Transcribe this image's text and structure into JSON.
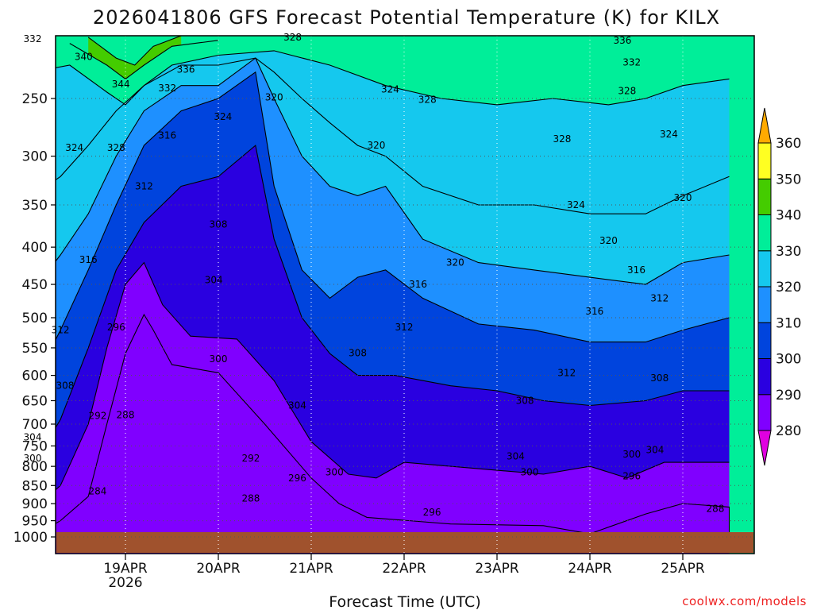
{
  "chart_data": {
    "type": "heatmap",
    "title": "2026041806 GFS Forecast Potential Temperature (K) for KILX",
    "xlabel": "Forecast Time (UTC)",
    "ylabel": "",
    "credit": "coolwx.com/models",
    "x_ticks": [
      {
        "label": "19APR",
        "sublabel": "2026",
        "t": 1
      },
      {
        "label": "20APR",
        "t": 2
      },
      {
        "label": "21APR",
        "t": 3
      },
      {
        "label": "22APR",
        "t": 4
      },
      {
        "label": "23APR",
        "t": 5
      },
      {
        "label": "24APR",
        "t": 6
      },
      {
        "label": "25APR",
        "t": 7
      }
    ],
    "x_range": [
      "2026-04-18 06Z",
      "2026-04-25 18Z"
    ],
    "y_ticks": [
      250,
      300,
      350,
      400,
      450,
      500,
      550,
      600,
      650,
      700,
      750,
      800,
      850,
      900,
      950,
      1000
    ],
    "y_range": [
      200,
      1000
    ],
    "y_scale": "log",
    "colorbar": {
      "levels": [
        280,
        290,
        300,
        310,
        320,
        330,
        340,
        350,
        360
      ],
      "colors": [
        "#e000e0",
        "#8000ff",
        "#2a00e0",
        "#0044dd",
        "#1e90ff",
        "#15c8ee",
        "#00ee99",
        "#44cc00",
        "#ffff22",
        "#ffaa00"
      ]
    },
    "ground_color": "#a0522d",
    "contour_interval": 4,
    "series": [
      {
        "level": 288,
        "p": [
          [
            0.0,
            1000
          ],
          [
            0.3,
            950
          ],
          [
            0.6,
            880
          ],
          [
            0.8,
            700
          ],
          [
            1.0,
            560
          ],
          [
            1.2,
            495
          ],
          [
            1.3,
            520
          ],
          [
            1.5,
            580
          ],
          [
            2.0,
            595
          ],
          [
            2.5,
            700
          ],
          [
            3.0,
            830
          ],
          [
            3.3,
            900
          ],
          [
            3.6,
            940
          ],
          [
            4.5,
            960
          ],
          [
            5.5,
            965
          ],
          [
            6.0,
            990
          ],
          [
            6.6,
            930
          ],
          [
            7.0,
            900
          ],
          [
            7.5,
            910
          ],
          [
            7.5,
            1000
          ]
        ]
      },
      {
        "level": 292,
        "p": [
          [
            0.0,
            920
          ],
          [
            0.3,
            850
          ],
          [
            0.6,
            700
          ],
          [
            0.8,
            550
          ],
          [
            1.0,
            450
          ],
          [
            1.2,
            420
          ],
          [
            1.4,
            480
          ],
          [
            1.7,
            530
          ],
          [
            2.2,
            535
          ],
          [
            2.6,
            610
          ],
          [
            3.0,
            740
          ],
          [
            3.4,
            820
          ],
          [
            3.7,
            830
          ],
          [
            4.0,
            790
          ],
          [
            4.5,
            800
          ],
          [
            5.5,
            820
          ],
          [
            6.0,
            800
          ],
          [
            6.4,
            830
          ],
          [
            6.8,
            790
          ],
          [
            7.5,
            790
          ]
        ]
      },
      {
        "level": 300,
        "p": [
          [
            0.0,
            800
          ],
          [
            0.3,
            690
          ],
          [
            0.6,
            550
          ],
          [
            0.9,
            430
          ],
          [
            1.2,
            370
          ],
          [
            1.6,
            330
          ],
          [
            2.0,
            320
          ],
          [
            2.4,
            290
          ],
          [
            2.6,
            390
          ],
          [
            2.9,
            500
          ],
          [
            3.2,
            560
          ],
          [
            3.5,
            600
          ],
          [
            3.9,
            600
          ],
          [
            4.5,
            620
          ],
          [
            5.0,
            630
          ],
          [
            5.5,
            650
          ],
          [
            6.0,
            660
          ],
          [
            6.6,
            650
          ],
          [
            7.0,
            630
          ],
          [
            7.5,
            630
          ]
        ]
      },
      {
        "level": 308,
        "p": [
          [
            0.0,
            620
          ],
          [
            0.3,
            520
          ],
          [
            0.6,
            430
          ],
          [
            0.9,
            350
          ],
          [
            1.2,
            290
          ],
          [
            1.6,
            260
          ],
          [
            2.0,
            250
          ],
          [
            2.4,
            230
          ],
          [
            2.6,
            330
          ],
          [
            2.9,
            430
          ],
          [
            3.2,
            470
          ],
          [
            3.5,
            440
          ],
          [
            3.8,
            430
          ],
          [
            4.2,
            470
          ],
          [
            4.8,
            510
          ],
          [
            5.4,
            520
          ],
          [
            6.0,
            540
          ],
          [
            6.6,
            540
          ],
          [
            7.0,
            520
          ],
          [
            7.5,
            500
          ]
        ]
      },
      {
        "level": 316,
        "p": [
          [
            0.0,
            460
          ],
          [
            0.3,
            410
          ],
          [
            0.6,
            360
          ],
          [
            0.9,
            300
          ],
          [
            1.2,
            260
          ],
          [
            1.6,
            240
          ],
          [
            2.0,
            240
          ],
          [
            2.4,
            220
          ],
          [
            2.6,
            250
          ],
          [
            2.9,
            300
          ],
          [
            3.2,
            330
          ],
          [
            3.5,
            340
          ],
          [
            3.8,
            330
          ],
          [
            4.2,
            390
          ],
          [
            4.8,
            420
          ],
          [
            5.4,
            430
          ],
          [
            6.0,
            440
          ],
          [
            6.6,
            450
          ],
          [
            7.0,
            420
          ],
          [
            7.5,
            410
          ]
        ]
      },
      {
        "level": 324,
        "p": [
          [
            0.0,
            340
          ],
          [
            0.3,
            320
          ],
          [
            0.6,
            290
          ],
          [
            0.9,
            260
          ],
          [
            1.2,
            240
          ],
          [
            1.6,
            225
          ],
          [
            2.0,
            225
          ],
          [
            2.4,
            220
          ],
          [
            2.6,
            230
          ],
          [
            2.9,
            250
          ],
          [
            3.2,
            270
          ],
          [
            3.5,
            290
          ],
          [
            3.8,
            300
          ],
          [
            4.2,
            330
          ],
          [
            4.8,
            350
          ],
          [
            5.4,
            350
          ],
          [
            6.0,
            360
          ],
          [
            6.6,
            360
          ],
          [
            7.0,
            340
          ],
          [
            7.5,
            320
          ]
        ]
      },
      {
        "level": 332,
        "p": [
          [
            0.0,
            230
          ],
          [
            0.4,
            225
          ],
          [
            0.8,
            245
          ],
          [
            1.0,
            255
          ],
          [
            1.2,
            240
          ],
          [
            1.5,
            225
          ],
          [
            2.0,
            218
          ],
          [
            2.6,
            215
          ],
          [
            3.2,
            225
          ],
          [
            3.8,
            240
          ],
          [
            4.4,
            250
          ],
          [
            5.0,
            255
          ],
          [
            5.6,
            250
          ],
          [
            6.2,
            255
          ],
          [
            6.6,
            250
          ],
          [
            7.0,
            240
          ],
          [
            7.5,
            235
          ]
        ]
      },
      {
        "level": 340,
        "p": [
          [
            0.4,
            210
          ],
          [
            0.8,
            225
          ],
          [
            1.0,
            235
          ],
          [
            1.2,
            225
          ],
          [
            1.5,
            212
          ],
          [
            2.0,
            208
          ]
        ]
      },
      {
        "level": 344,
        "p": [
          [
            0.6,
            206
          ],
          [
            0.9,
            220
          ],
          [
            1.1,
            225
          ],
          [
            1.3,
            212
          ],
          [
            1.6,
            205
          ]
        ]
      }
    ],
    "annotations": [
      {
        "text": "332",
        "t": -0.75,
        "p": 207
      },
      {
        "text": "340",
        "t": -0.2,
        "p": 219
      },
      {
        "text": "344",
        "t": 0.2,
        "p": 239
      },
      {
        "text": "336",
        "t": 0.9,
        "p": 228
      },
      {
        "text": "332",
        "t": 0.7,
        "p": 242
      },
      {
        "text": "324",
        "t": 1.3,
        "p": 265
      },
      {
        "text": "320",
        "t": 1.85,
        "p": 249
      },
      {
        "text": "328",
        "t": 2.05,
        "p": 206
      },
      {
        "text": "324",
        "t": 3.1,
        "p": 243
      },
      {
        "text": "328",
        "t": 3.5,
        "p": 251
      },
      {
        "text": "316",
        "t": 0.7,
        "p": 281
      },
      {
        "text": "324",
        "t": -0.3,
        "p": 292
      },
      {
        "text": "328",
        "t": 0.15,
        "p": 292
      },
      {
        "text": "312",
        "t": 0.45,
        "p": 330
      },
      {
        "text": "320",
        "t": 2.95,
        "p": 290
      },
      {
        "text": "328",
        "t": 4.95,
        "p": 284
      },
      {
        "text": "324",
        "t": 5.1,
        "p": 350
      },
      {
        "text": "308",
        "t": 1.25,
        "p": 372
      },
      {
        "text": "316",
        "t": -0.15,
        "p": 416
      },
      {
        "text": "304",
        "t": 1.2,
        "p": 444
      },
      {
        "text": "316",
        "t": 3.4,
        "p": 450
      },
      {
        "text": "320",
        "t": 3.8,
        "p": 420
      },
      {
        "text": "312",
        "t": -0.45,
        "p": 520
      },
      {
        "text": "296",
        "t": 0.15,
        "p": 515
      },
      {
        "text": "312",
        "t": 3.25,
        "p": 515
      },
      {
        "text": "308",
        "t": 2.75,
        "p": 559
      },
      {
        "text": "300",
        "t": 1.25,
        "p": 570
      },
      {
        "text": "308",
        "t": -0.4,
        "p": 620
      },
      {
        "text": "292",
        "t": -0.05,
        "p": 682
      },
      {
        "text": "288",
        "t": 0.25,
        "p": 680
      },
      {
        "text": "304",
        "t": 2.1,
        "p": 660
      },
      {
        "text": "304",
        "t": -0.75,
        "p": 730
      },
      {
        "text": "300",
        "t": -0.75,
        "p": 780
      },
      {
        "text": "292",
        "t": 1.6,
        "p": 780
      },
      {
        "text": "300",
        "t": 2.5,
        "p": 815
      },
      {
        "text": "296",
        "t": 2.1,
        "p": 830
      },
      {
        "text": "284",
        "t": -0.05,
        "p": 865
      },
      {
        "text": "288",
        "t": 1.6,
        "p": 885
      },
      {
        "text": "296",
        "t": 3.55,
        "p": 925
      },
      {
        "text": "304",
        "t": 4.45,
        "p": 775
      },
      {
        "text": "300",
        "t": 4.6,
        "p": 815
      },
      {
        "text": "308",
        "t": 4.55,
        "p": 650
      },
      {
        "text": "312",
        "t": 5.0,
        "p": 595
      },
      {
        "text": "316",
        "t": 5.3,
        "p": 490
      },
      {
        "text": "320",
        "t": 5.45,
        "p": 392
      },
      {
        "text": "316",
        "t": 5.75,
        "p": 430
      },
      {
        "text": "312",
        "t": 6.0,
        "p": 470
      },
      {
        "text": "308",
        "t": 6.0,
        "p": 605
      },
      {
        "text": "304",
        "t": 5.95,
        "p": 760
      },
      {
        "text": "300",
        "t": 5.7,
        "p": 770
      },
      {
        "text": "296",
        "t": 5.7,
        "p": 825
      },
      {
        "text": "288",
        "t": 6.6,
        "p": 915
      },
      {
        "text": "320",
        "t": 6.25,
        "p": 342
      },
      {
        "text": "324",
        "t": 6.1,
        "p": 280
      },
      {
        "text": "328",
        "t": 5.65,
        "p": 244
      },
      {
        "text": "332",
        "t": 5.7,
        "p": 223
      },
      {
        "text": "336",
        "t": 5.6,
        "p": 208
      }
    ]
  }
}
